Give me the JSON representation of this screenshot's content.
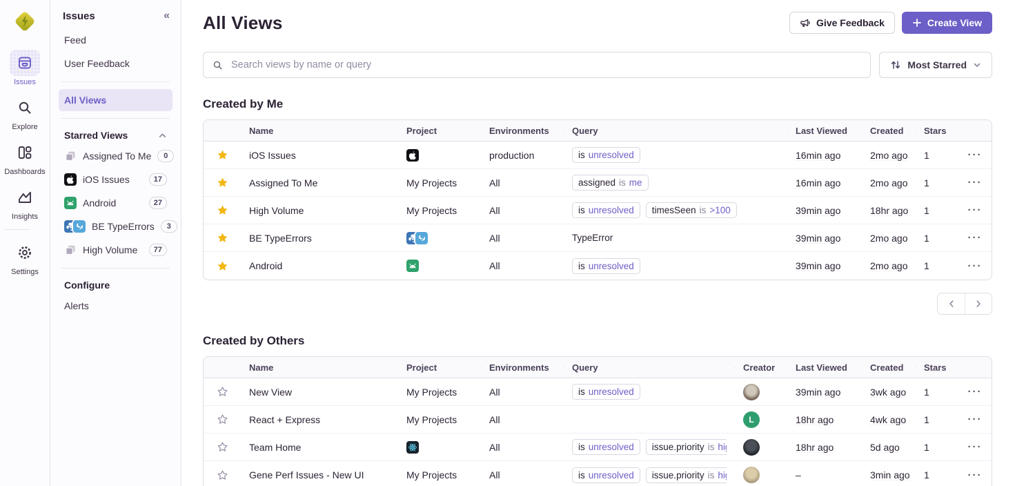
{
  "colors": {
    "accent": "#6C5FC7",
    "star": "#F2B712",
    "logo_yellow": "#E5D53C",
    "logo_olive": "#9FA01B"
  },
  "rail": {
    "items": [
      {
        "label": "Issues",
        "icon": "inbox",
        "active": true
      },
      {
        "label": "Explore",
        "icon": "search",
        "active": false
      },
      {
        "label": "Dashboards",
        "icon": "dashboards",
        "active": false
      },
      {
        "label": "Insights",
        "icon": "insights",
        "active": false
      },
      {
        "label": "Settings",
        "icon": "gear",
        "active": false,
        "divider_before": true
      }
    ]
  },
  "sidebar": {
    "title": "Issues",
    "collapse_icon": "chevron-double-left",
    "nav_top": [
      {
        "label": "Feed"
      },
      {
        "label": "User Feedback"
      }
    ],
    "all_views_label": "All Views",
    "starred_heading": "Starred Views",
    "starred_items": [
      {
        "label": "Assigned To Me",
        "count": "0",
        "icon": "layers"
      },
      {
        "label": "iOS Issues",
        "count": "17",
        "icon": "apple"
      },
      {
        "label": "Android",
        "count": "27",
        "icon": "android"
      },
      {
        "label": "BE TypeErrors",
        "count": "3",
        "icon": "python-pair"
      },
      {
        "label": "High Volume",
        "count": "77",
        "icon": "layers"
      }
    ],
    "configure_heading": "Configure",
    "configure_items": [
      {
        "label": "Alerts"
      }
    ]
  },
  "header": {
    "title": "All Views",
    "give_feedback_label": "Give Feedback",
    "create_view_label": "Create View"
  },
  "toolbar": {
    "search_placeholder": "Search views by name or query",
    "sort_label": "Most Starred"
  },
  "sections": [
    {
      "heading": "Created by Me",
      "star_style": "filled",
      "columns": [
        "Name",
        "Project",
        "Environments",
        "Query",
        "Last Viewed",
        "Created",
        "Stars"
      ],
      "rows": [
        {
          "name": "iOS Issues",
          "project": {
            "icons": [
              "apple"
            ]
          },
          "environments": "production",
          "query": [
            {
              "segs": [
                [
                  "is",
                  "k"
                ],
                [
                  "unresolved",
                  "v"
                ]
              ]
            }
          ],
          "last_viewed": "16min ago",
          "created": "2mo ago",
          "stars": "1"
        },
        {
          "name": "Assigned To Me",
          "project": {
            "text": "My Projects"
          },
          "environments": "All",
          "query": [
            {
              "segs": [
                [
                  "assigned",
                  "k"
                ],
                [
                  "is",
                  "op"
                ],
                [
                  "me",
                  "v"
                ]
              ]
            }
          ],
          "last_viewed": "16min ago",
          "created": "2mo ago",
          "stars": "1"
        },
        {
          "name": "High Volume",
          "project": {
            "text": "My Projects"
          },
          "environments": "All",
          "query": [
            {
              "segs": [
                [
                  "is",
                  "k"
                ],
                [
                  "unresolved",
                  "v"
                ]
              ]
            },
            {
              "segs": [
                [
                  "timesSeen",
                  "k"
                ],
                [
                  "is",
                  "op"
                ],
                [
                  ">100",
                  "v"
                ]
              ]
            }
          ],
          "last_viewed": "39min ago",
          "created": "18hr ago",
          "stars": "1"
        },
        {
          "name": "BE TypeErrors",
          "project": {
            "icons": [
              "python",
              "bluebird"
            ]
          },
          "environments": "All",
          "query": [
            {
              "plain": true,
              "segs": [
                [
                  "TypeError",
                  "k"
                ]
              ]
            }
          ],
          "last_viewed": "39min ago",
          "created": "2mo ago",
          "stars": "1"
        },
        {
          "name": "Android",
          "project": {
            "icons": [
              "android"
            ]
          },
          "environments": "All",
          "query": [
            {
              "segs": [
                [
                  "is",
                  "k"
                ],
                [
                  "unresolved",
                  "v"
                ]
              ]
            }
          ],
          "last_viewed": "39min ago",
          "created": "2mo ago",
          "stars": "1"
        }
      ]
    },
    {
      "heading": "Created by Others",
      "star_style": "outline",
      "columns": [
        "Name",
        "Project",
        "Environments",
        "Query",
        "Creator",
        "Last Viewed",
        "Created",
        "Stars"
      ],
      "rows": [
        {
          "name": "New View",
          "project": {
            "text": "My Projects"
          },
          "environments": "All",
          "query": [
            {
              "segs": [
                [
                  "is",
                  "k"
                ],
                [
                  "unresolved",
                  "v"
                ]
              ]
            }
          ],
          "creator": {
            "kind": "photo",
            "c1": "#cfc8bb",
            "c2": "#6e5d4e"
          },
          "last_viewed": "39min ago",
          "created": "3wk ago",
          "stars": "1"
        },
        {
          "name": "React + Express",
          "project": {
            "text": "My Projects"
          },
          "environments": "All",
          "query": [],
          "creator": {
            "kind": "letter",
            "bg": "#2F9E6E",
            "ch": "L"
          },
          "last_viewed": "18hr ago",
          "created": "4wk ago",
          "stars": "1"
        },
        {
          "name": "Team Home",
          "project": {
            "icons": [
              "react"
            ]
          },
          "environments": "All",
          "query": [
            {
              "segs": [
                [
                  "is",
                  "k"
                ],
                [
                  "unresolved",
                  "v"
                ]
              ]
            },
            {
              "segs": [
                [
                  "issue.priority",
                  "k"
                ],
                [
                  "is",
                  "op"
                ],
                [
                  "high",
                  "v"
                ]
              ]
            }
          ],
          "creator": {
            "kind": "photo",
            "c1": "#4a4f58",
            "c2": "#1f2227"
          },
          "last_viewed": "18hr ago",
          "created": "5d ago",
          "stars": "1"
        },
        {
          "name": "Gene Perf Issues - New UI",
          "project": {
            "text": "My Projects"
          },
          "environments": "All",
          "query": [
            {
              "segs": [
                [
                  "is",
                  "k"
                ],
                [
                  "unresolved",
                  "v"
                ]
              ]
            },
            {
              "segs": [
                [
                  "issue.priority",
                  "k"
                ],
                [
                  "is",
                  "op"
                ],
                [
                  "high",
                  "v"
                ]
              ]
            }
          ],
          "creator": {
            "kind": "photo",
            "c1": "#dccdaa",
            "c2": "#a8987b"
          },
          "last_viewed": "–",
          "created": "3min ago",
          "stars": "1"
        }
      ]
    }
  ],
  "pagination": {
    "prev": "previous",
    "next": "next"
  }
}
